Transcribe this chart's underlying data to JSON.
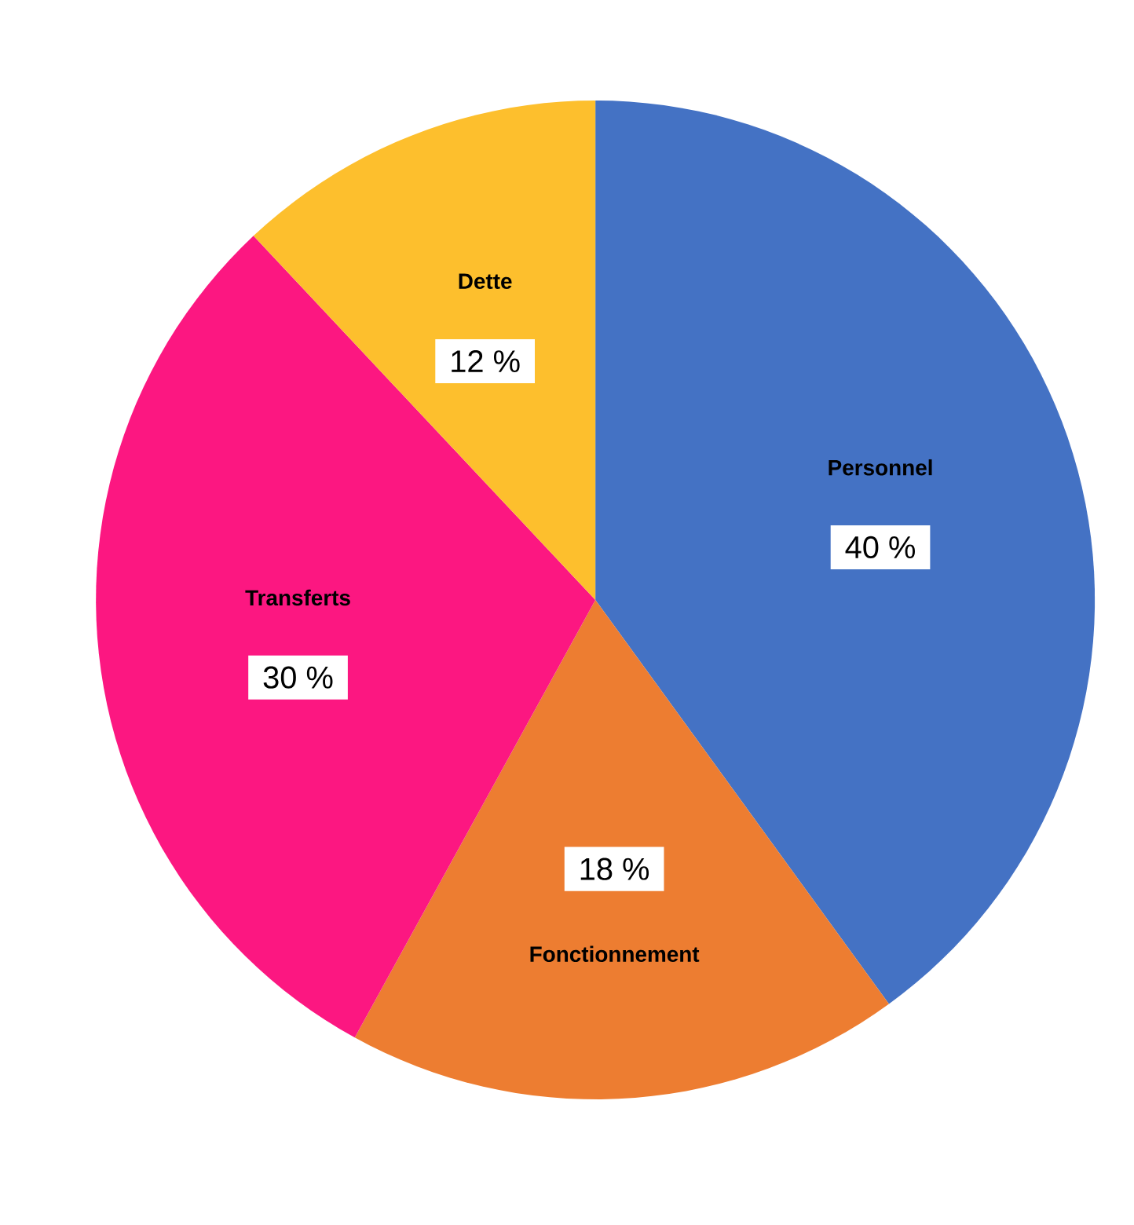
{
  "chart_data": {
    "type": "pie",
    "categories": [
      "Personnel",
      "Fonctionnement",
      "Transferts",
      "Dette"
    ],
    "values": [
      40,
      18,
      30,
      12
    ],
    "colors": [
      "#4472c4",
      "#ed7d31",
      "#fc1781",
      "#fdbf2d"
    ],
    "value_labels": [
      "40 %",
      "18 %",
      "30 %",
      "12 %"
    ]
  }
}
